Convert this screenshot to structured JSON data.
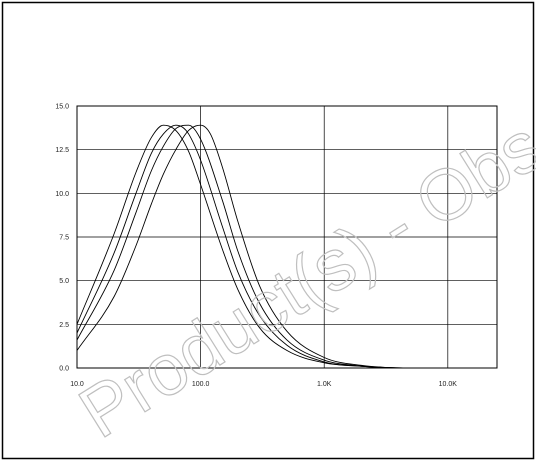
{
  "chart_data": {
    "type": "line",
    "title": "",
    "xlabel": "",
    "ylabel": "",
    "x_scale": "log",
    "xlim": [
      10,
      25000
    ],
    "ylim": [
      0,
      15
    ],
    "grid": true,
    "x_ticks": [
      {
        "value": 10,
        "label": "10.0"
      },
      {
        "value": 100,
        "label": "100.0"
      },
      {
        "value": 1000,
        "label": "1.0K"
      },
      {
        "value": 10000,
        "label": "10.0K"
      }
    ],
    "y_ticks": [
      {
        "value": 0,
        "label": "0.0"
      },
      {
        "value": 2.5,
        "label": "2.5"
      },
      {
        "value": 5,
        "label": "5.0"
      },
      {
        "value": 7.5,
        "label": "7.5"
      },
      {
        "value": 10,
        "label": "10.0"
      },
      {
        "value": 12.5,
        "label": "12.5"
      },
      {
        "value": 15,
        "label": "15.0"
      }
    ],
    "series": [
      {
        "x": [
          10,
          20,
          30,
          40,
          50,
          63,
          80,
          100,
          150,
          200,
          300,
          500,
          1000,
          2000,
          5000,
          10000,
          25000
        ],
        "values": [
          2.5,
          7.7,
          11.2,
          13.2,
          13.9,
          13.6,
          12.4,
          10.5,
          6.8,
          4.5,
          2.3,
          1.0,
          0.3,
          0.1,
          0.0,
          0.0,
          0.0
        ]
      },
      {
        "x": [
          10,
          20,
          30,
          40,
          50,
          63,
          71,
          80,
          100,
          150,
          200,
          300,
          500,
          1000,
          2000,
          5000,
          10000,
          25000
        ],
        "values": [
          2.0,
          6.6,
          10.0,
          12.3,
          13.4,
          13.9,
          13.8,
          13.4,
          11.9,
          8.1,
          5.5,
          3.0,
          1.3,
          0.35,
          0.1,
          0.0,
          0.0,
          0.0
        ]
      },
      {
        "x": [
          10,
          20,
          30,
          40,
          50,
          63,
          80,
          100,
          150,
          200,
          300,
          500,
          1000,
          2000,
          5000,
          10000,
          25000
        ],
        "values": [
          1.6,
          5.6,
          8.9,
          11.3,
          12.7,
          13.7,
          13.9,
          13.1,
          9.6,
          6.7,
          3.7,
          1.6,
          0.45,
          0.12,
          0.0,
          0.0,
          0.0
        ]
      },
      {
        "x": [
          10,
          20,
          30,
          40,
          50,
          63,
          80,
          100,
          120,
          150,
          200,
          300,
          500,
          1000,
          2000,
          5000,
          10000,
          25000
        ],
        "values": [
          1.0,
          4.1,
          7.0,
          9.4,
          11.1,
          12.5,
          13.6,
          13.9,
          13.4,
          11.5,
          8.4,
          4.7,
          2.1,
          0.6,
          0.15,
          0.0,
          0.0,
          0.0
        ]
      }
    ]
  },
  "watermark": {
    "text": "Product(s) - Obs"
  },
  "colors": {
    "background": "#ffffff",
    "lines": "#000000",
    "watermark": "#bfbfbf"
  }
}
